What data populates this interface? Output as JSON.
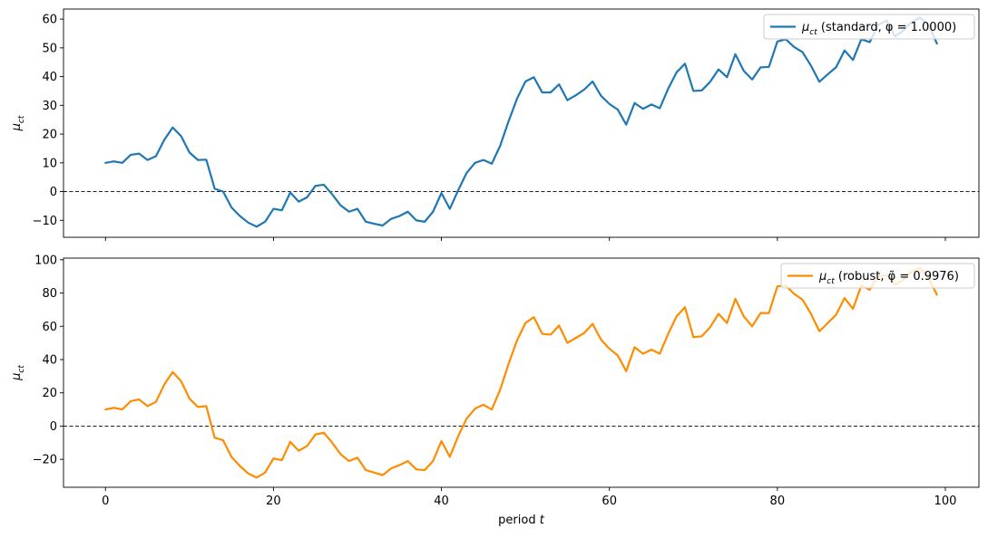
{
  "chart_data": [
    {
      "type": "line",
      "ylabel": "μ_ct",
      "xlabel": "",
      "xlim": [
        -5,
        104
      ],
      "ylim": [
        -15.9,
        63.5
      ],
      "xticks": [
        0,
        20,
        40,
        60,
        80,
        100
      ],
      "yticks": [
        -10,
        0,
        10,
        20,
        30,
        40,
        50,
        60
      ],
      "show_xtick_labels": false,
      "reference_line": 0,
      "grid": false,
      "legend_position": "top-right",
      "series": [
        {
          "name": "μ_ct (standard, φ = 1.0000)",
          "color": "#1f77b4",
          "x_start": 0,
          "values": [
            10,
            10.5,
            10,
            12.8,
            13.2,
            11,
            12.3,
            18,
            22.3,
            19.3,
            13.6,
            11,
            11.1,
            1,
            0,
            -5.5,
            -8.5,
            -10.8,
            -12.2,
            -10.5,
            -6,
            -6.5,
            -0.3,
            -3.5,
            -2,
            2,
            2.4,
            -1,
            -4.8,
            -7,
            -6,
            -10.5,
            -11.2,
            -11.8,
            -9.5,
            -8.5,
            -7,
            -10,
            -10.5,
            -7,
            -0.5,
            -6,
            0.5,
            6.5,
            10,
            11,
            9.7,
            16,
            24.5,
            32.3,
            38.3,
            39.8,
            34.5,
            34.5,
            37.3,
            31.8,
            33.5,
            35.5,
            38.3,
            33.3,
            30.5,
            28.5,
            23.3,
            30.8,
            28.8,
            30.3,
            29,
            35.8,
            41.5,
            44.5,
            35,
            35.2,
            38.2,
            42.5,
            39.8,
            47.8,
            42,
            39,
            43.2,
            43.4,
            52.2,
            53,
            50.3,
            48.5,
            43.8,
            38.2,
            40.8,
            43.3,
            49.1,
            45.8,
            53,
            52,
            58,
            59.5,
            54,
            56,
            59,
            60.5,
            58,
            51.5
          ]
        }
      ]
    },
    {
      "type": "line",
      "ylabel": "μ_ct",
      "xlabel": "period t",
      "xlim": [
        -5,
        104
      ],
      "ylim": [
        -36.8,
        101
      ],
      "xticks": [
        0,
        20,
        40,
        60,
        80,
        100
      ],
      "yticks": [
        -20,
        0,
        20,
        40,
        60,
        80,
        100
      ],
      "reference_line": 0,
      "grid": false,
      "legend_position": "top-right",
      "series": [
        {
          "name": "μ_ct (robust, φ̃ = 0.9976)",
          "color": "#ff8c00",
          "x_start": 0,
          "values": [
            10,
            11,
            10,
            15,
            16,
            12,
            14.5,
            25,
            32.5,
            27,
            16.5,
            11.5,
            12,
            -7,
            -8.5,
            -18.5,
            -24,
            -28.5,
            -31,
            -28,
            -19.5,
            -20.5,
            -9.5,
            -14.8,
            -12,
            -5,
            -4,
            -10,
            -17,
            -21,
            -19,
            -26.5,
            -28,
            -29.5,
            -25.5,
            -23.5,
            -21,
            -26,
            -26.5,
            -21,
            -9,
            -18.5,
            -6,
            4.5,
            10.5,
            12.8,
            10,
            22,
            37.5,
            51.5,
            62,
            65.5,
            55.5,
            55,
            60.5,
            50,
            53,
            56,
            61.5,
            52,
            46.5,
            42.5,
            33,
            47.5,
            43.5,
            46,
            43.5,
            55.5,
            66,
            71.5,
            53.5,
            54,
            59.5,
            67.5,
            62,
            76.5,
            66,
            60,
            68,
            68,
            84,
            84.5,
            79.5,
            76,
            67.5,
            57,
            62,
            67,
            77,
            70.5,
            84.5,
            82,
            90,
            91,
            85,
            88,
            93,
            95,
            89,
            79
          ]
        }
      ]
    }
  ]
}
